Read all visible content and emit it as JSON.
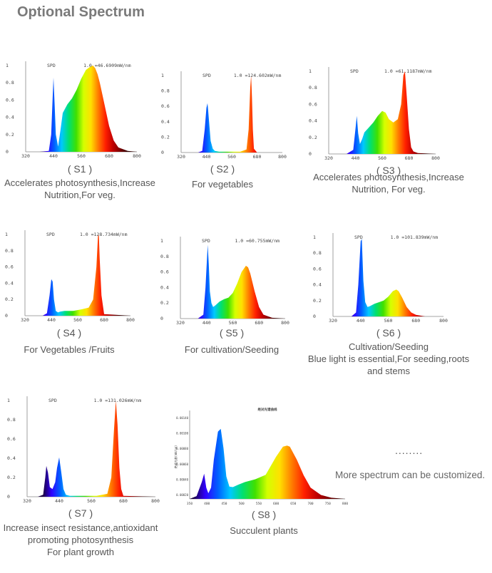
{
  "page_title": "Optional Spectrum",
  "more_dots": "........",
  "more_text": "More spectrum can be customized.",
  "spectrum_stops": [
    "#1a0040",
    "#3000ff",
    "#0060ff",
    "#00c8ff",
    "#00e070",
    "#40e000",
    "#d4ff00",
    "#ffe000",
    "#ff7a00",
    "#ff1e00",
    "#c00000",
    "#780000",
    "#300000"
  ],
  "chart_data": [
    {
      "id": "S1",
      "type": "area",
      "spd_label": "SPD",
      "peak_label": "1.0 =46.6909mW/nm",
      "y_ticks": [
        "1",
        "0.8",
        "0.6",
        "0.4",
        "0.2",
        "0"
      ],
      "x_ticks": [
        "320",
        "440",
        "560",
        "680",
        "800"
      ],
      "xlim": [
        320,
        800
      ],
      "ylim": [
        0,
        1
      ],
      "caption": "( S1 )",
      "desc_lines": [
        "Accelerates photosynthesis,Increase",
        "Nutrition,For veg."
      ],
      "x": [
        380,
        420,
        430,
        436,
        440,
        445,
        450,
        460,
        470,
        480,
        500,
        520,
        540,
        560,
        580,
        600,
        610,
        620,
        630,
        640,
        660,
        680,
        700,
        720,
        760,
        800
      ],
      "y": [
        0,
        0.01,
        0.2,
        0.6,
        0.86,
        0.55,
        0.2,
        0.06,
        0.25,
        0.45,
        0.55,
        0.62,
        0.72,
        0.85,
        0.95,
        0.99,
        1.0,
        0.97,
        0.9,
        0.8,
        0.55,
        0.3,
        0.13,
        0.05,
        0.01,
        0
      ]
    },
    {
      "id": "S2",
      "type": "area",
      "spd_label": "SPD",
      "peak_label": "1.0 =124.602mW/nm",
      "y_ticks": [
        "1",
        "0.8",
        "0.6",
        "0.4",
        "0.2",
        "0"
      ],
      "x_ticks": [
        "320",
        "440",
        "560",
        "680",
        "800"
      ],
      "xlim": [
        320,
        800
      ],
      "ylim": [
        0,
        1
      ],
      "caption": "( S2 )",
      "desc_lines": [
        "For vegetables"
      ],
      "x": [
        400,
        420,
        432,
        440,
        445,
        448,
        460,
        470,
        480,
        500,
        540,
        600,
        630,
        640,
        648,
        652,
        656,
        660,
        665,
        680,
        800
      ],
      "y": [
        0,
        0.02,
        0.3,
        0.58,
        0.64,
        0.55,
        0.15,
        0.05,
        0.02,
        0.01,
        0.01,
        0.01,
        0.04,
        0.3,
        0.85,
        1.0,
        0.7,
        0.3,
        0.05,
        0,
        0
      ]
    },
    {
      "id": "S3",
      "type": "area",
      "spd_label": "SPD",
      "peak_label": "1.0 =61.1187mW/nm",
      "y_ticks": [
        "1",
        "0.8",
        "0.6",
        "0.4",
        "0.2",
        "0"
      ],
      "x_ticks": [
        "320",
        "440",
        "560",
        "680",
        "800"
      ],
      "xlim": [
        320,
        800
      ],
      "ylim": [
        0,
        1
      ],
      "caption": "( S3 )",
      "desc_lines": [
        "Accelerates photosynthesis,Increase",
        "Nutrition,    For veg."
      ],
      "x": [
        400,
        430,
        440,
        446,
        452,
        460,
        470,
        480,
        500,
        520,
        540,
        560,
        575,
        590,
        610,
        630,
        645,
        655,
        662,
        670,
        680,
        690,
        700,
        720,
        800
      ],
      "y": [
        0,
        0.05,
        0.3,
        0.46,
        0.25,
        0.12,
        0.18,
        0.26,
        0.32,
        0.38,
        0.46,
        0.52,
        0.5,
        0.42,
        0.38,
        0.42,
        0.6,
        0.95,
        1.0,
        0.7,
        0.3,
        0.08,
        0.03,
        0.01,
        0
      ]
    },
    {
      "id": "S4",
      "type": "area",
      "spd_label": "SPD",
      "peak_label": "1.0 =128.734mW/nm",
      "y_ticks": [
        "1",
        "0.8",
        "0.6",
        "0.4",
        "0.2",
        "0"
      ],
      "x_ticks": [
        "320",
        "440",
        "560",
        "680",
        "800"
      ],
      "xlim": [
        320,
        800
      ],
      "ylim": [
        0,
        1
      ],
      "caption": "( S4 )",
      "desc_lines": [
        "For Vegetables /Fruits"
      ],
      "x": [
        400,
        420,
        432,
        440,
        446,
        452,
        460,
        470,
        480,
        500,
        540,
        580,
        610,
        630,
        645,
        652,
        656,
        660,
        668,
        680,
        800
      ],
      "y": [
        0,
        0.03,
        0.25,
        0.45,
        0.42,
        0.2,
        0.06,
        0.04,
        0.05,
        0.06,
        0.06,
        0.08,
        0.1,
        0.2,
        0.6,
        0.98,
        1.0,
        0.7,
        0.25,
        0.02,
        0
      ]
    },
    {
      "id": "S5",
      "type": "area",
      "spd_label": "SPD",
      "peak_label": "1.0 =60.755mW/nm",
      "y_ticks": [
        "1",
        "0.8",
        "0.6",
        "0.4",
        "0.2",
        "0"
      ],
      "x_ticks": [
        "320",
        "440",
        "560",
        "680",
        "800"
      ],
      "xlim": [
        320,
        800
      ],
      "ylim": [
        0,
        1
      ],
      "caption": "( S5 )",
      "desc_lines": [
        "For cultivation/Seeding"
      ],
      "x": [
        400,
        425,
        435,
        445,
        450,
        455,
        462,
        470,
        480,
        500,
        520,
        540,
        560,
        580,
        600,
        620,
        630,
        640,
        660,
        680,
        700,
        740,
        800
      ],
      "y": [
        0,
        0.05,
        0.4,
        0.95,
        0.7,
        0.35,
        0.2,
        0.15,
        0.17,
        0.22,
        0.25,
        0.27,
        0.33,
        0.45,
        0.6,
        0.68,
        0.66,
        0.58,
        0.35,
        0.15,
        0.05,
        0.01,
        0
      ]
    },
    {
      "id": "S6",
      "type": "area",
      "spd_label": "SPD",
      "peak_label": "1.0 =101.839mW/nm",
      "y_ticks": [
        "1",
        "0.8",
        "0.6",
        "0.4",
        "0.2",
        "0"
      ],
      "x_ticks": [
        "320",
        "440",
        "560",
        "680",
        "800"
      ],
      "xlim": [
        320,
        800
      ],
      "ylim": [
        0,
        1
      ],
      "caption": "( S6 )",
      "desc_lines": [
        "Cultivation/Seeding",
        "Blue light is essential,For seeding,roots",
        "and stems"
      ],
      "x": [
        400,
        420,
        430,
        440,
        445,
        452,
        460,
        470,
        480,
        500,
        520,
        540,
        560,
        580,
        595,
        605,
        620,
        640,
        660,
        680,
        720,
        800
      ],
      "y": [
        0,
        0.05,
        0.4,
        0.95,
        0.98,
        0.45,
        0.18,
        0.12,
        0.13,
        0.16,
        0.18,
        0.2,
        0.25,
        0.32,
        0.34,
        0.32,
        0.24,
        0.12,
        0.05,
        0.02,
        0,
        0
      ]
    },
    {
      "id": "S7",
      "type": "area",
      "spd_label": "SPD",
      "peak_label": "1.0 =131.026mW/nm",
      "y_ticks": [
        "1",
        "0.8",
        "0.6",
        "0.4",
        "0.2",
        "0"
      ],
      "x_ticks": [
        "320",
        "440",
        "560",
        "680",
        "800"
      ],
      "xlim": [
        320,
        800
      ],
      "ylim": [
        0,
        1
      ],
      "caption": "( S7 )",
      "desc_lines": [
        "Increase insect resistance,antioxidant",
        "promoting photosynthesis",
        "For plant growth"
      ],
      "x": [
        360,
        380,
        388,
        392,
        398,
        405,
        415,
        425,
        432,
        440,
        448,
        456,
        465,
        480,
        520,
        580,
        620,
        635,
        645,
        652,
        658,
        665,
        672,
        680,
        800
      ],
      "y": [
        0,
        0.02,
        0.2,
        0.32,
        0.25,
        0.1,
        0.08,
        0.15,
        0.3,
        0.41,
        0.25,
        0.08,
        0.02,
        0.01,
        0.01,
        0.01,
        0.03,
        0.2,
        0.7,
        1.0,
        0.75,
        0.3,
        0.08,
        0.01,
        0
      ]
    },
    {
      "id": "S8",
      "type": "area",
      "spd_label": "",
      "peak_label": "",
      "chart_title_cn": "绝对光谱曲线",
      "ylabel": "绝对光谱(mW/nm)",
      "y_ticks": [
        "0.00140",
        "0.00100",
        "0.00080",
        "0.00060",
        "0.00040",
        "0.00020"
      ],
      "x_ticks": [
        "350",
        "400",
        "450",
        "500",
        "550",
        "600",
        "650",
        "700",
        "750",
        "800"
      ],
      "xlim": [
        350,
        800
      ],
      "ylim": [
        0,
        0.0015
      ],
      "caption": "( S8 )",
      "desc_lines": [
        "Succulent plants"
      ],
      "x": [
        350,
        370,
        385,
        392,
        398,
        404,
        412,
        420,
        432,
        440,
        448,
        456,
        465,
        475,
        490,
        510,
        540,
        570,
        600,
        620,
        632,
        640,
        660,
        680,
        700,
        730,
        760,
        800
      ],
      "y": [
        0,
        5e-05,
        0.0003,
        0.00045,
        0.0002,
        0.0001,
        0.0002,
        0.0007,
        0.0012,
        0.00125,
        0.0009,
        0.0004,
        0.00022,
        0.00021,
        0.00025,
        0.0003,
        0.00035,
        0.00043,
        0.00075,
        0.00093,
        0.00095,
        0.00093,
        0.0007,
        0.00042,
        0.0002,
        7e-05,
        2e-05,
        0
      ]
    }
  ]
}
